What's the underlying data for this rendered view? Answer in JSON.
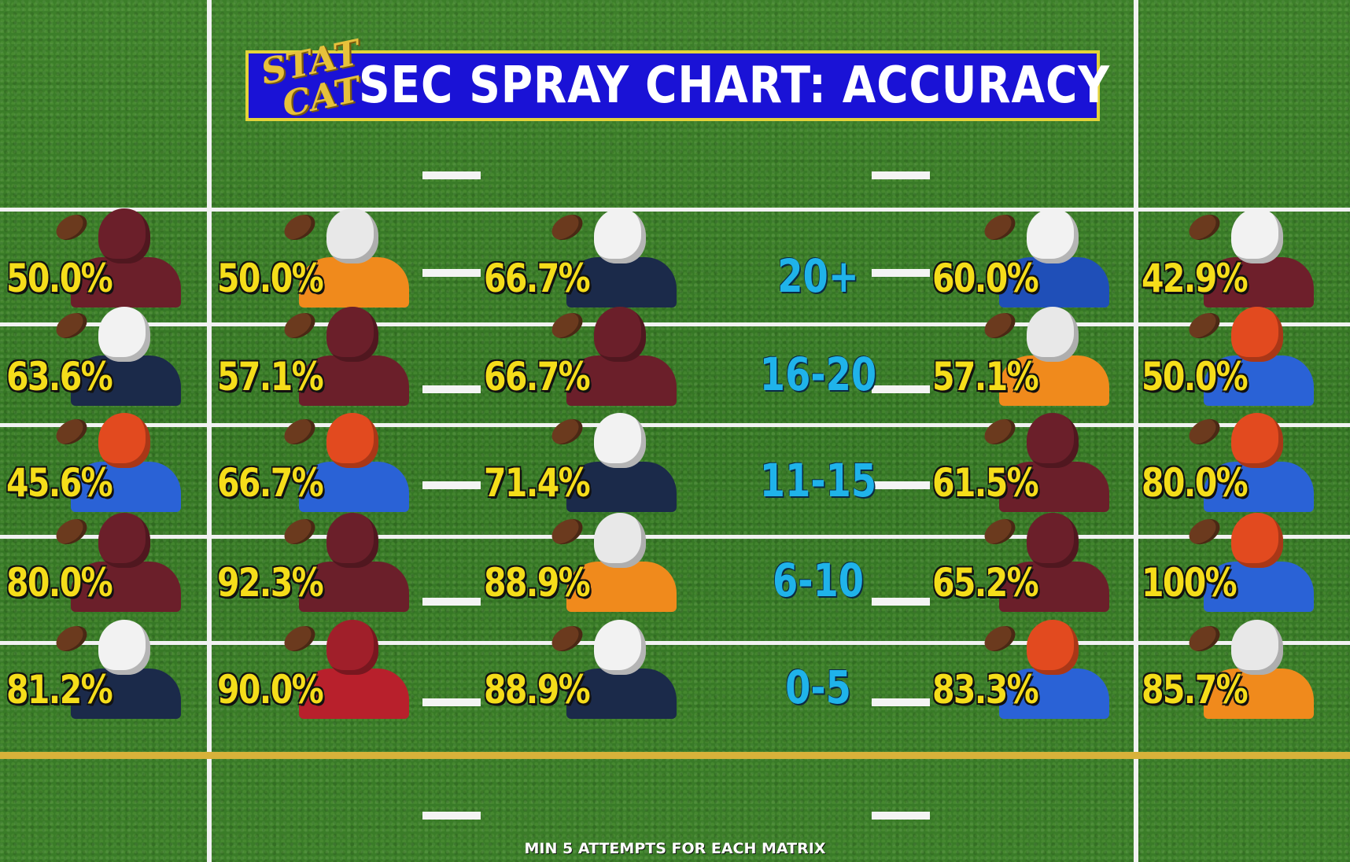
{
  "title": "SEC SPRAY CHART: ACCURACY",
  "logo": {
    "line1": "STAT",
    "line2": "CAT"
  },
  "footnote": "MIN 5 ATTEMPTS FOR EACH MATRIX",
  "colors": {
    "banner": "#1a12d6",
    "banner_border": "#e3d33a",
    "percent_text": "#f5dd1a",
    "zone_text": "#1fb3ea",
    "field": "#3a7c28"
  },
  "chart_data": {
    "type": "table",
    "title": "SEC SPRAY CHART: ACCURACY",
    "rows": [
      "20+",
      "16-20",
      "11-15",
      "6-10",
      "0-5"
    ],
    "columns_count": 6,
    "values": [
      [
        "50.0%",
        "50.0%",
        "66.7%",
        "60.0%",
        "42.9%"
      ],
      [
        "63.6%",
        "57.1%",
        "66.7%",
        "57.1%",
        "50.0%"
      ],
      [
        "45.6%",
        "66.7%",
        "71.4%",
        "61.5%",
        "80.0%"
      ],
      [
        "80.0%",
        "92.3%",
        "88.9%",
        "65.2%",
        "100%"
      ],
      [
        "81.2%",
        "90.0%",
        "88.9%",
        "83.3%",
        "85.7%"
      ]
    ],
    "player_uniforms": [
      [
        "texas-am",
        "tennessee",
        "auburn",
        "kentucky",
        "mississippi-state"
      ],
      [
        "auburn",
        "texas-am",
        "texas-am",
        "tennessee",
        "florida"
      ],
      [
        "florida",
        "florida",
        "auburn",
        "texas-am",
        "florida"
      ],
      [
        "texas-am",
        "texas-am",
        "tennessee",
        "texas-am",
        "florida"
      ],
      [
        "auburn",
        "alabama",
        "auburn",
        "florida",
        "tennessee"
      ]
    ]
  },
  "team_colors": {
    "texas-am": {
      "helmet": "#6b1f2a",
      "jersey": "#6b1f2a"
    },
    "tennessee": {
      "helmet": "#e8e8e8",
      "jersey": "#f08a1c"
    },
    "auburn": {
      "helmet": "#f2f2f2",
      "jersey": "#1b2a4a"
    },
    "kentucky": {
      "helmet": "#f2f2f2",
      "jersey": "#1f4fb8"
    },
    "mississippi-state": {
      "helmet": "#f2f2f2",
      "jersey": "#6e1f2b"
    },
    "florida": {
      "helmet": "#e24a1f",
      "jersey": "#2a62d6"
    },
    "alabama": {
      "helmet": "#a01f2a",
      "jersey": "#b8202c"
    }
  }
}
